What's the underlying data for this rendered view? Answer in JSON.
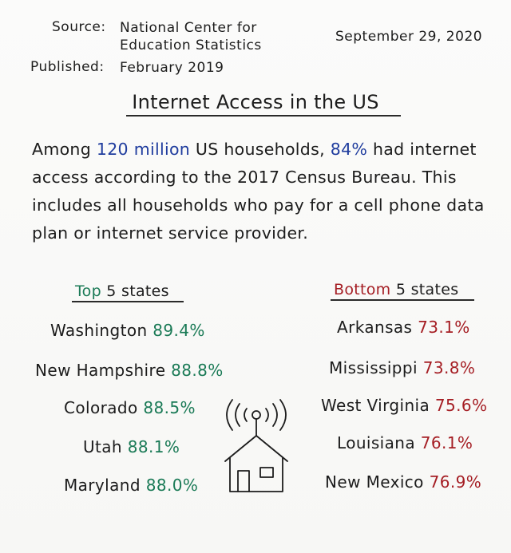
{
  "meta": {
    "source_label": "Source:",
    "source_line1": "National Center for",
    "source_line2": "Education Statistics",
    "published_label": "Published:",
    "published_value": "February 2019",
    "date": "September 29, 2020"
  },
  "title": "Internet Access in the US",
  "intro": {
    "part1": "Among ",
    "highlight_households": "120 million",
    "part2": " US households, ",
    "highlight_percent": "84%",
    "part3": " had internet",
    "line2": "access according to the 2017 Census Bureau. This",
    "line3": "includes all households who pay for a cell phone data",
    "line4": "plan or internet service provider."
  },
  "top": {
    "heading_accent": "Top",
    "heading_rest": " 5 states",
    "items": [
      {
        "state": "Washington",
        "value": "89.4%"
      },
      {
        "state": "New Hampshire",
        "value": "88.8%"
      },
      {
        "state": "Colorado",
        "value": "88.5%"
      },
      {
        "state": "Utah",
        "value": "88.1%"
      },
      {
        "state": "Maryland",
        "value": "88.0%"
      }
    ]
  },
  "bottom": {
    "heading_accent": "Bottom",
    "heading_rest": " 5 states",
    "items": [
      {
        "state": "Arkansas",
        "value": "73.1%"
      },
      {
        "state": "Mississippi",
        "value": "73.8%"
      },
      {
        "state": "West Virginia",
        "value": "75.6%"
      },
      {
        "state": "Louisiana",
        "value": "76.1%"
      },
      {
        "state": "New Mexico",
        "value": "76.9%"
      }
    ]
  },
  "colors": {
    "blue": "#1f3c9e",
    "green": "#1a7a56",
    "red": "#a51e24"
  },
  "icon": "house-with-wifi-antenna-icon"
}
